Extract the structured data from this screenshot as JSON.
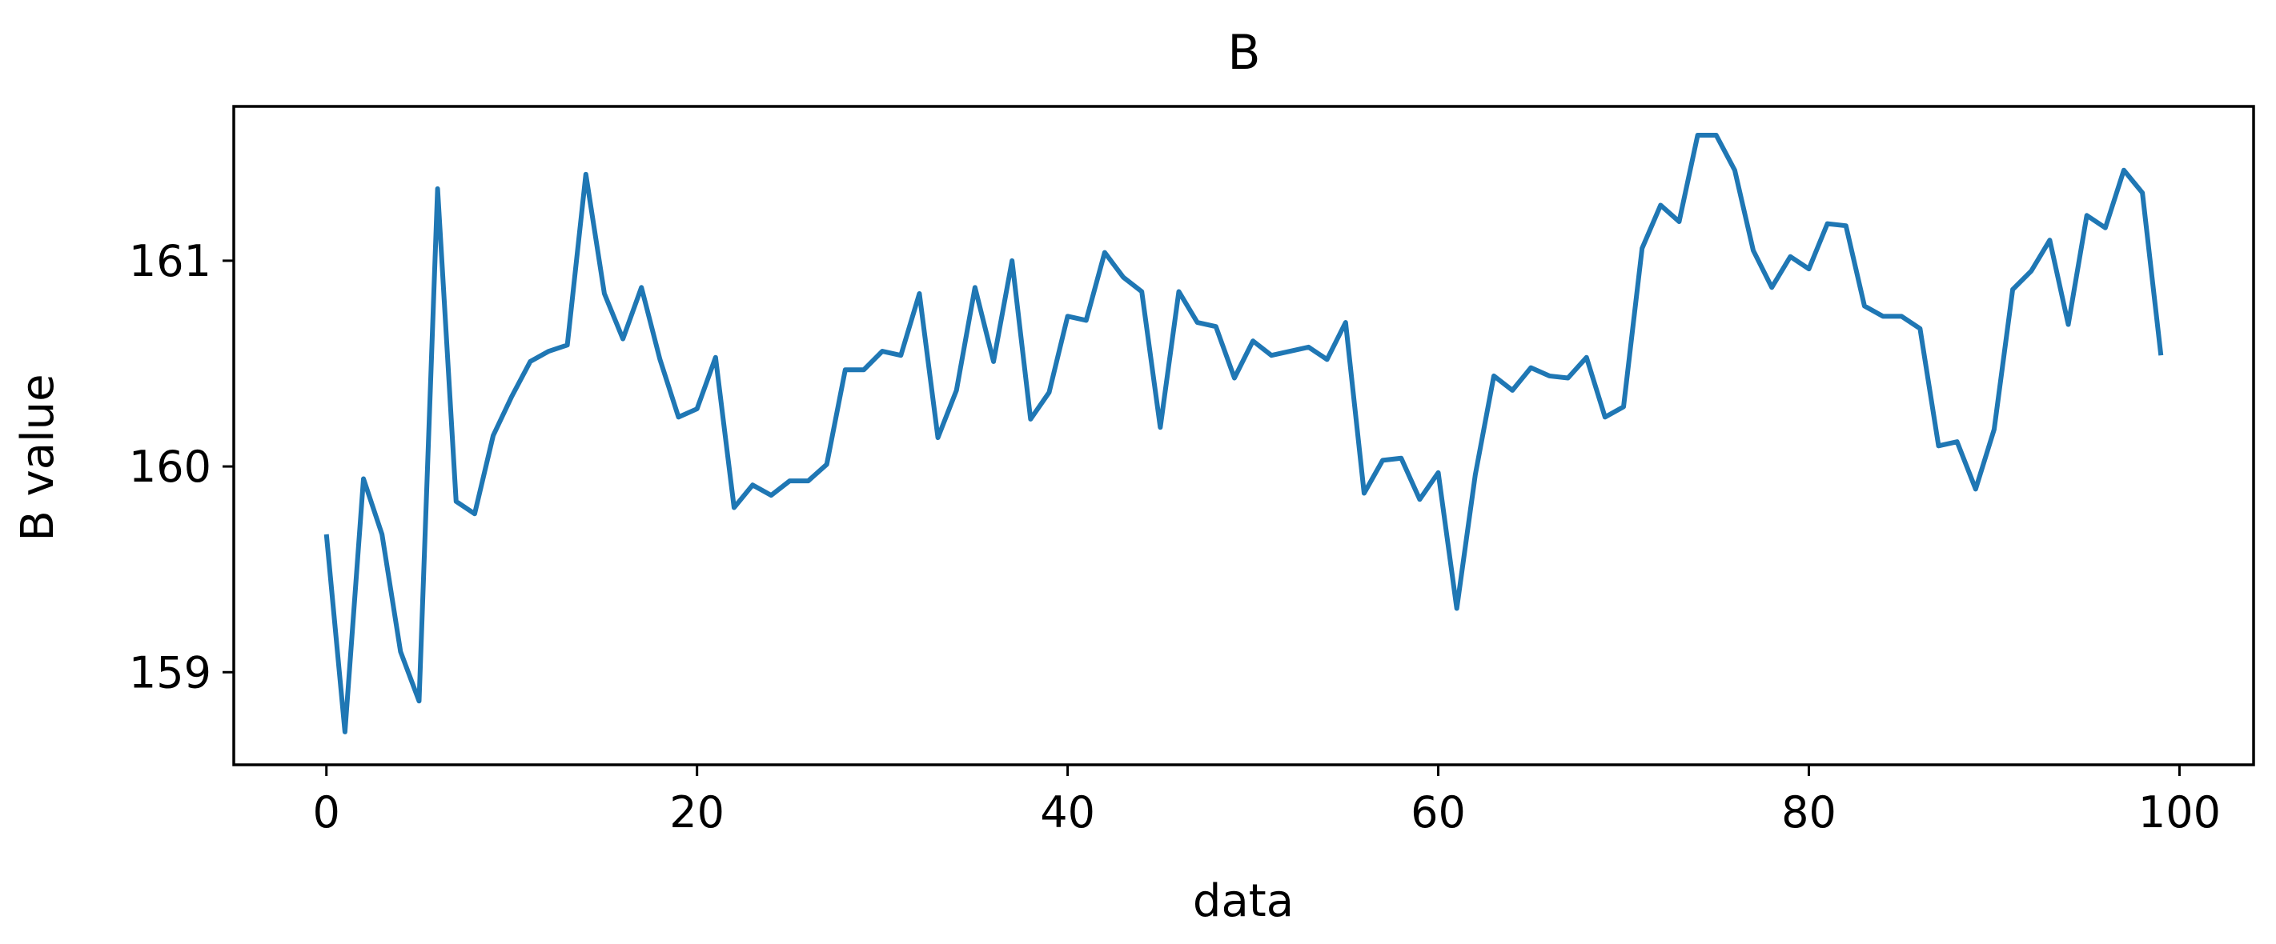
{
  "chart_data": {
    "type": "line",
    "title": "B",
    "xlabel": "data",
    "ylabel": "B value",
    "xlim": [
      -5,
      104
    ],
    "ylim": [
      158.55,
      161.75
    ],
    "xticks": [
      0,
      20,
      40,
      60,
      80,
      100
    ],
    "xtick_labels": [
      "0",
      "20",
      "40",
      "60",
      "80",
      "100"
    ],
    "yticks": [
      159,
      160,
      161
    ],
    "ytick_labels": [
      "159",
      "160",
      "161"
    ],
    "grid": false,
    "line_color": "#1f77b4",
    "series": [
      {
        "x": [
          0,
          1,
          2,
          3,
          4,
          5,
          6,
          7,
          8,
          9,
          10,
          11,
          12,
          13,
          14,
          15,
          16,
          17,
          18,
          19,
          20,
          21,
          22,
          23,
          24,
          25,
          26,
          27,
          28,
          29,
          30,
          31,
          32,
          33,
          34,
          35,
          36,
          37,
          38,
          39,
          40,
          41,
          42,
          43,
          44,
          45,
          46,
          47,
          48,
          49,
          50,
          51,
          52,
          53,
          54,
          55,
          56,
          57,
          58,
          59,
          60,
          61,
          62,
          63,
          64,
          65,
          66,
          67,
          68,
          69,
          70,
          71,
          72,
          73,
          74,
          75,
          76,
          77,
          78,
          79,
          80,
          81,
          82,
          83,
          84,
          85,
          86,
          87,
          88,
          89,
          90,
          91,
          92,
          93,
          94,
          95,
          96,
          97,
          98,
          99
        ],
        "values": [
          159.67,
          158.71,
          159.94,
          159.67,
          159.1,
          158.86,
          161.35,
          159.83,
          159.77,
          160.15,
          160.34,
          160.51,
          160.56,
          160.59,
          161.42,
          160.84,
          160.62,
          160.87,
          160.52,
          160.24,
          160.28,
          160.53,
          159.8,
          159.91,
          159.86,
          159.93,
          159.93,
          160.01,
          160.47,
          160.47,
          160.56,
          160.54,
          160.84,
          160.14,
          160.37,
          160.87,
          160.51,
          161.0,
          160.23,
          160.36,
          160.73,
          160.71,
          161.04,
          160.92,
          160.85,
          160.19,
          160.85,
          160.7,
          160.68,
          160.43,
          160.61,
          160.54,
          160.56,
          160.58,
          160.52,
          160.7,
          159.87,
          160.03,
          160.04,
          159.84,
          159.97,
          159.31,
          159.96,
          160.44,
          160.37,
          160.48,
          160.44,
          160.43,
          160.53,
          160.24,
          160.29,
          161.06,
          161.27,
          161.19,
          161.61,
          161.61,
          161.44,
          161.05,
          160.87,
          161.02,
          160.96,
          161.18,
          161.17,
          160.78,
          160.73,
          160.73,
          160.67,
          160.1,
          160.12,
          159.89,
          160.18,
          160.86,
          160.95,
          161.1,
          160.69,
          161.22,
          161.16,
          161.44,
          161.33,
          160.54
        ]
      }
    ]
  }
}
